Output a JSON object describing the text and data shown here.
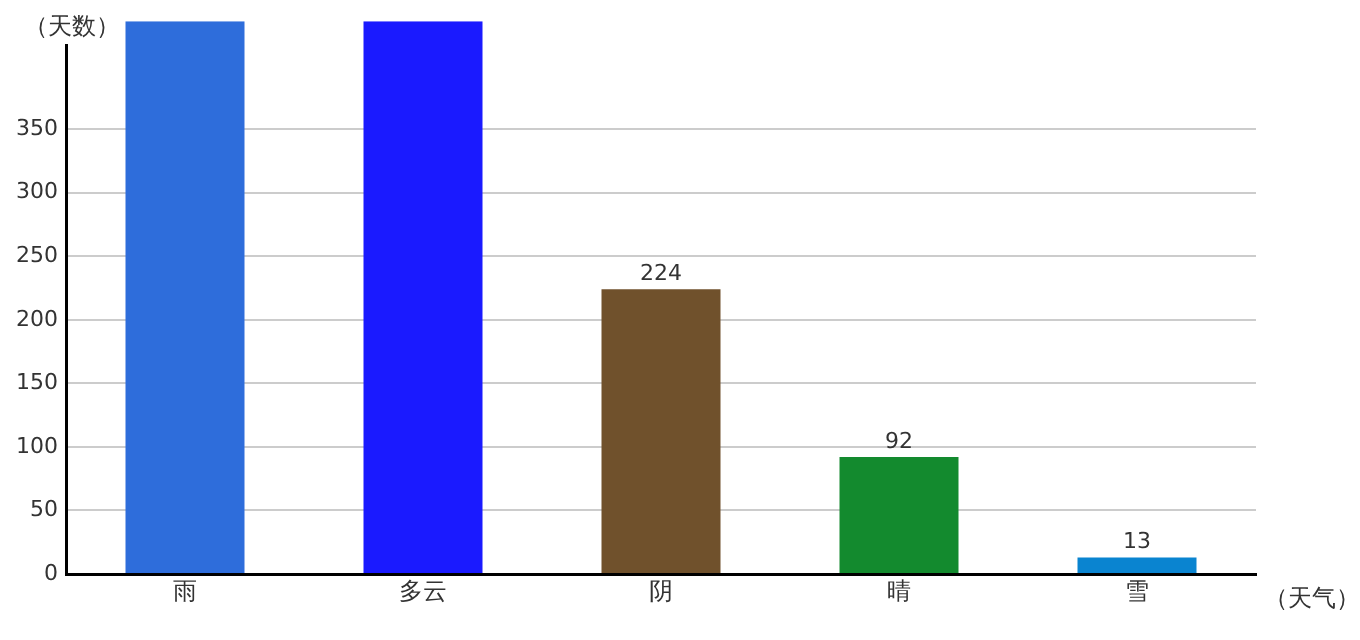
{
  "chart_data": {
    "type": "bar",
    "xlabel": "（天气）",
    "ylabel": "（天数）",
    "categories": [
      "雨",
      "多云",
      "阴",
      "晴",
      "雪"
    ],
    "values": [
      435,
      435,
      224,
      92,
      13
    ],
    "value_labels": [
      null,
      null,
      "224",
      "92",
      "13"
    ],
    "colors": [
      "#2e6ddb",
      "#1a1aff",
      "#70512c",
      "#138a2e",
      "#0a84d0"
    ],
    "ylim": [
      0,
      435
    ],
    "yticks": [
      0,
      50,
      100,
      150,
      200,
      250,
      300,
      350
    ],
    "grid": "y",
    "legend": false
  }
}
